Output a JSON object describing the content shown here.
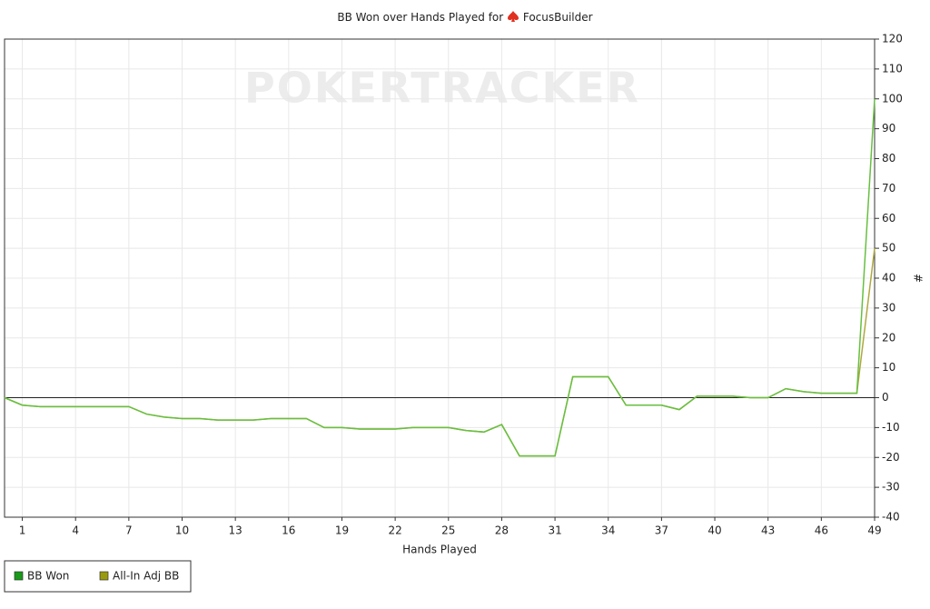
{
  "chart_data": {
    "type": "line",
    "title": "BB Won over Hands Played for",
    "player": "FocusBuilder",
    "watermark": "POKERTRACKER",
    "x_label": "Hands Played",
    "y_label": "#",
    "x": [
      0,
      1,
      2,
      3,
      4,
      5,
      6,
      7,
      8,
      9,
      10,
      11,
      12,
      13,
      14,
      15,
      16,
      17,
      18,
      19,
      20,
      21,
      22,
      23,
      24,
      25,
      26,
      27,
      28,
      29,
      30,
      31,
      32,
      33,
      34,
      35,
      36,
      37,
      38,
      39,
      40,
      41,
      42,
      43,
      44,
      45,
      46,
      47,
      48,
      49
    ],
    "xlim": [
      0,
      49
    ],
    "xticks": [
      1,
      4,
      7,
      10,
      13,
      16,
      19,
      22,
      25,
      28,
      31,
      34,
      37,
      40,
      43,
      46,
      49
    ],
    "ylim": [
      -40,
      120
    ],
    "yticks": [
      -40,
      -30,
      -20,
      -10,
      0,
      10,
      20,
      30,
      40,
      50,
      60,
      70,
      80,
      90,
      100,
      110,
      120
    ],
    "grid": true,
    "zero_line": true,
    "legend": "bottom-left",
    "series": [
      {
        "name": "BB Won",
        "color": "#1a9a1a",
        "line_color": "#66c040",
        "values": [
          0,
          -2.5,
          -3,
          -3,
          -3,
          -3,
          -3,
          -3,
          -5.5,
          -6.5,
          -7,
          -7,
          -7.5,
          -7.5,
          -7.5,
          -7,
          -7,
          -7,
          -10,
          -10,
          -10.5,
          -10.5,
          -10.5,
          -10,
          -10,
          -10,
          -11,
          -11.5,
          -9,
          -19.5,
          -19.5,
          -19.5,
          7,
          7,
          7,
          -2.5,
          -2.5,
          -2.5,
          -4,
          0.5,
          0.5,
          0.5,
          0,
          0,
          3,
          2,
          1.5,
          1.5,
          1.5,
          100
        ]
      },
      {
        "name": "All-In Adj BB",
        "color": "#9a9a10",
        "line_color": "#b0a840",
        "values": [
          0,
          -2.5,
          -3,
          -3,
          -3,
          -3,
          -3,
          -3,
          -5.5,
          -6.5,
          -7,
          -7,
          -7.5,
          -7.5,
          -7.5,
          -7,
          -7,
          -7,
          -10,
          -10,
          -10.5,
          -10.5,
          -10.5,
          -10,
          -10,
          -10,
          -11,
          -11.5,
          -9,
          -19.5,
          -19.5,
          -19.5,
          7,
          7,
          7,
          -2.5,
          -2.5,
          -2.5,
          -4,
          0.5,
          0.5,
          0.5,
          0,
          0,
          3,
          2,
          1.5,
          1.5,
          1.5,
          50
        ]
      }
    ]
  }
}
